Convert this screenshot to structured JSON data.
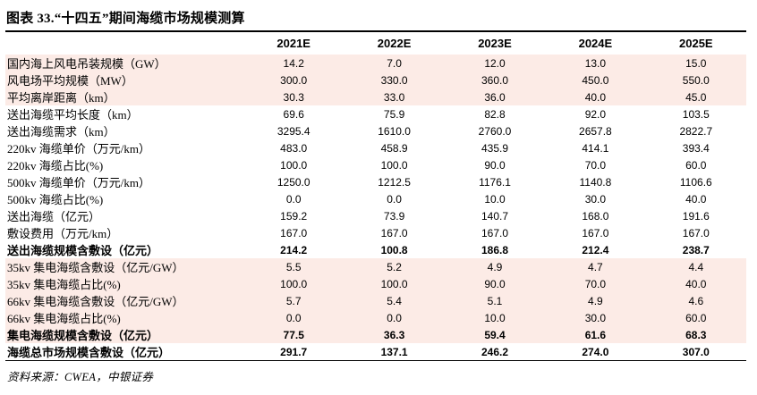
{
  "title": "图表 33.“十四五”期间海缆市场规模测算",
  "source_note": "资料来源：CWEA，中银证券",
  "colors": {
    "row_shade": "#fcebe6",
    "rule": "#000000",
    "text": "#000000"
  },
  "table": {
    "columns": [
      "2021E",
      "2022E",
      "2023E",
      "2024E",
      "2025E"
    ],
    "rows": [
      {
        "label": "国内海上风电吊装规模（GW）",
        "values": [
          "14.2",
          "7.0",
          "12.0",
          "13.0",
          "15.0"
        ],
        "shaded": true,
        "bold": false
      },
      {
        "label": "风电场平均规模（MW）",
        "values": [
          "300.0",
          "330.0",
          "360.0",
          "450.0",
          "550.0"
        ],
        "shaded": true,
        "bold": false
      },
      {
        "label": "平均离岸距离（km）",
        "values": [
          "30.3",
          "33.0",
          "36.0",
          "40.0",
          "45.0"
        ],
        "shaded": true,
        "bold": false
      },
      {
        "label": "送出海缆平均长度（km）",
        "values": [
          "69.6",
          "75.9",
          "82.8",
          "92.0",
          "103.5"
        ],
        "shaded": false,
        "bold": false
      },
      {
        "label": "送出海缆需求（km）",
        "values": [
          "3295.4",
          "1610.0",
          "2760.0",
          "2657.8",
          "2822.7"
        ],
        "shaded": false,
        "bold": false
      },
      {
        "label": "220kv 海缆单价（万元/km）",
        "values": [
          "483.0",
          "458.9",
          "435.9",
          "414.1",
          "393.4"
        ],
        "shaded": false,
        "bold": false
      },
      {
        "label": "220kv 海缆占比(%)",
        "values": [
          "100.0",
          "100.0",
          "90.0",
          "70.0",
          "60.0"
        ],
        "shaded": false,
        "bold": false
      },
      {
        "label": "500kv 海缆单价（万元/km）",
        "values": [
          "1250.0",
          "1212.5",
          "1176.1",
          "1140.8",
          "1106.6"
        ],
        "shaded": false,
        "bold": false
      },
      {
        "label": "500kv 海缆占比(%)",
        "values": [
          "0.0",
          "0.0",
          "10.0",
          "30.0",
          "40.0"
        ],
        "shaded": false,
        "bold": false
      },
      {
        "label": "送出海缆（亿元）",
        "values": [
          "159.2",
          "73.9",
          "140.7",
          "168.0",
          "191.6"
        ],
        "shaded": false,
        "bold": false
      },
      {
        "label": "敷设费用（万元/km）",
        "values": [
          "167.0",
          "167.0",
          "167.0",
          "167.0",
          "167.0"
        ],
        "shaded": false,
        "bold": false
      },
      {
        "label": "送出海缆规模含敷设（亿元）",
        "values": [
          "214.2",
          "100.8",
          "186.8",
          "212.4",
          "238.7"
        ],
        "shaded": false,
        "bold": true
      },
      {
        "label": "35kv 集电海缆含敷设（亿元/GW）",
        "values": [
          "5.5",
          "5.2",
          "4.9",
          "4.7",
          "4.4"
        ],
        "shaded": true,
        "bold": false
      },
      {
        "label": "35kv 集电海缆占比(%)",
        "values": [
          "100.0",
          "100.0",
          "90.0",
          "70.0",
          "40.0"
        ],
        "shaded": true,
        "bold": false
      },
      {
        "label": "66kv 集电海缆含敷设（亿元/GW）",
        "values": [
          "5.7",
          "5.4",
          "5.1",
          "4.9",
          "4.6"
        ],
        "shaded": true,
        "bold": false
      },
      {
        "label": "66kv 集电海缆占比(%)",
        "values": [
          "0.0",
          "0.0",
          "10.0",
          "30.0",
          "60.0"
        ],
        "shaded": true,
        "bold": false
      },
      {
        "label": "集电海缆规模含敷设（亿元）",
        "values": [
          "77.5",
          "36.3",
          "59.4",
          "61.6",
          "68.3"
        ],
        "shaded": true,
        "bold": true
      },
      {
        "label": "海缆总市场规模含敷设（亿元）",
        "values": [
          "291.7",
          "137.1",
          "246.2",
          "274.0",
          "307.0"
        ],
        "shaded": false,
        "bold": true
      }
    ]
  }
}
